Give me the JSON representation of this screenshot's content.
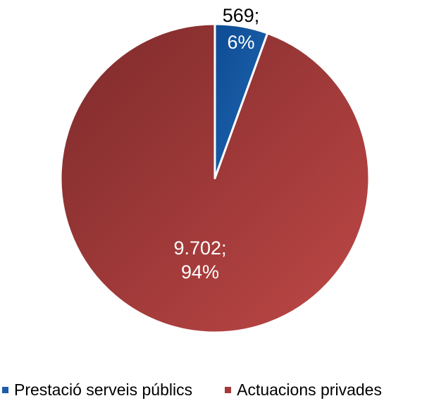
{
  "colors": {
    "prestacio": "#1B5DA8",
    "actuacions": "#A3393A"
  },
  "chart_data": {
    "type": "pie",
    "categories": [
      "Prestació serveis públics",
      "Actuacions privades"
    ],
    "values": [
      569,
      9702
    ],
    "data_labels": [
      {
        "value": "569;",
        "percent": "6%"
      },
      {
        "value": "9.702;",
        "percent": "94%"
      }
    ],
    "legend": {
      "position": "bottom",
      "items": [
        "Prestació serveis públics",
        "Actuacions privades"
      ]
    }
  }
}
